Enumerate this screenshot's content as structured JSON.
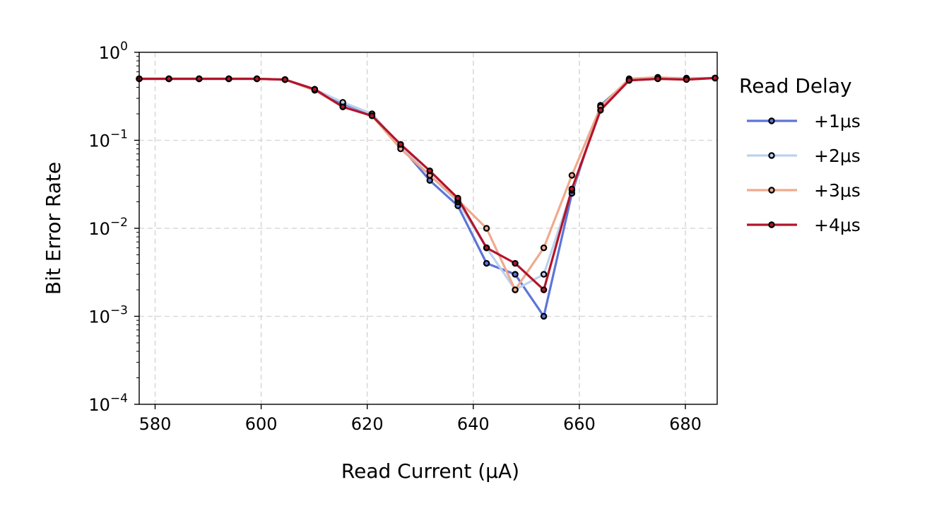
{
  "chart_data": {
    "type": "line",
    "title": "",
    "xlabel": "Read Current (μA)",
    "ylabel": "Bit Error Rate",
    "xlim": [
      577,
      686
    ],
    "ylim": [
      0.0001,
      1
    ],
    "yscale": "log",
    "grid": true,
    "x_ticks": [
      "580",
      "600",
      "620",
      "640",
      "660",
      "680"
    ],
    "y_ticks": [
      {
        "base": "10",
        "exp": "0"
      },
      {
        "base": "10",
        "exp": "−1"
      },
      {
        "base": "10",
        "exp": "−2"
      },
      {
        "base": "10",
        "exp": "−3"
      },
      {
        "base": "10",
        "exp": "−4"
      }
    ],
    "legend": {
      "title": "Read Delay",
      "position": "outside-right"
    },
    "x": [
      577,
      582.6,
      588.3,
      593.9,
      599.2,
      604.5,
      610.1,
      615.4,
      620.9,
      626.3,
      631.8,
      637.1,
      642.5,
      647.9,
      653.3,
      658.6,
      664.0,
      669.4,
      674.8,
      680.2,
      685.6
    ],
    "series": [
      {
        "name": "+1μs",
        "color": "#5b75d8",
        "values": [
          0.5,
          0.5,
          0.5,
          0.5,
          0.5,
          0.49,
          0.38,
          0.26,
          0.2,
          0.085,
          0.035,
          0.018,
          0.004,
          0.003,
          0.001,
          0.025,
          0.25,
          0.48,
          0.5,
          0.5,
          0.51
        ]
      },
      {
        "name": "+2μs",
        "color": "#bcd2ee",
        "values": [
          0.5,
          0.5,
          0.5,
          0.5,
          0.5,
          0.49,
          0.38,
          0.27,
          0.2,
          0.085,
          0.04,
          0.02,
          0.006,
          0.002,
          0.003,
          0.027,
          0.24,
          0.49,
          0.51,
          0.51,
          0.51
        ]
      },
      {
        "name": "+3μs",
        "color": "#f0a98c",
        "values": [
          0.5,
          0.5,
          0.5,
          0.5,
          0.5,
          0.49,
          0.37,
          0.24,
          0.19,
          0.08,
          0.04,
          0.021,
          0.01,
          0.002,
          0.006,
          0.04,
          0.24,
          0.5,
          0.52,
          0.5,
          0.51
        ]
      },
      {
        "name": "+4μs",
        "color": "#b2142b",
        "values": [
          0.5,
          0.5,
          0.5,
          0.5,
          0.5,
          0.49,
          0.38,
          0.24,
          0.19,
          0.09,
          0.045,
          0.022,
          0.006,
          0.004,
          0.002,
          0.028,
          0.22,
          0.48,
          0.5,
          0.49,
          0.51
        ]
      }
    ]
  }
}
